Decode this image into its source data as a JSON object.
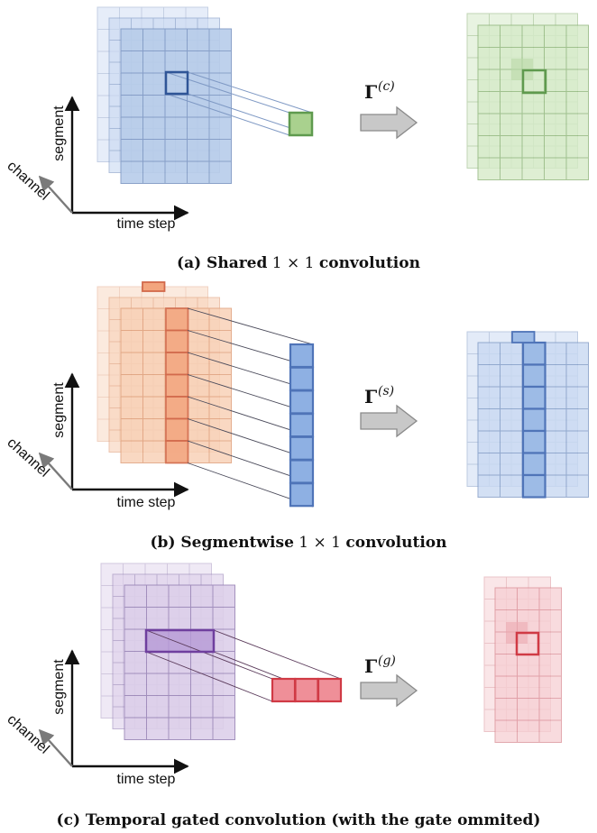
{
  "colors": {
    "blue_light": "#c9d9f2",
    "blue_mid": "#b8cdea",
    "blue_grid": "#7f99c4",
    "blue_strong": "#4f74b8",
    "green_light": "#d6ebc9",
    "green_grid": "#8fb57a",
    "green_strong": "#5f9a4e",
    "orange_light": "#f8d2b8",
    "orange_grid": "#e0a07c",
    "orange_strong": "#d2694b",
    "purple_light": "#ddd0ea",
    "purple_grid": "#9b87b8",
    "purple_strong": "#6f3f9e",
    "red_light": "#f6cfd3",
    "red_grid": "#d98b93",
    "red_strong": "#d03a45",
    "arrow_fill": "#c8c8c8",
    "arrow_stroke": "#8a8a8a",
    "axis": "#111111",
    "channel_axis": "#7a7a7a"
  },
  "panels": [
    {
      "axis_labels": {
        "segment": "segment",
        "channel": "channel",
        "time": "time step"
      },
      "operator": {
        "symbol": "Γ",
        "superscript": "(c)"
      },
      "caption": {
        "prefix": "(a) Shared",
        "math": "1 × 1",
        "suffix": "convolution"
      }
    },
    {
      "axis_labels": {
        "segment": "segment",
        "channel": "channel",
        "time": "time step"
      },
      "operator": {
        "symbol": "Γ",
        "superscript": "(s)"
      },
      "caption": {
        "prefix": "(b) Segmentwise",
        "math": "1 × 1",
        "suffix": "convolution"
      }
    },
    {
      "axis_labels": {
        "segment": "segment",
        "channel": "channel",
        "time": "time step"
      },
      "operator": {
        "symbol": "Γ",
        "superscript": "(g)"
      },
      "caption": {
        "prefix": "(c) Temporal gated convolution (with the gate ommited)",
        "math": "",
        "suffix": ""
      }
    }
  ]
}
